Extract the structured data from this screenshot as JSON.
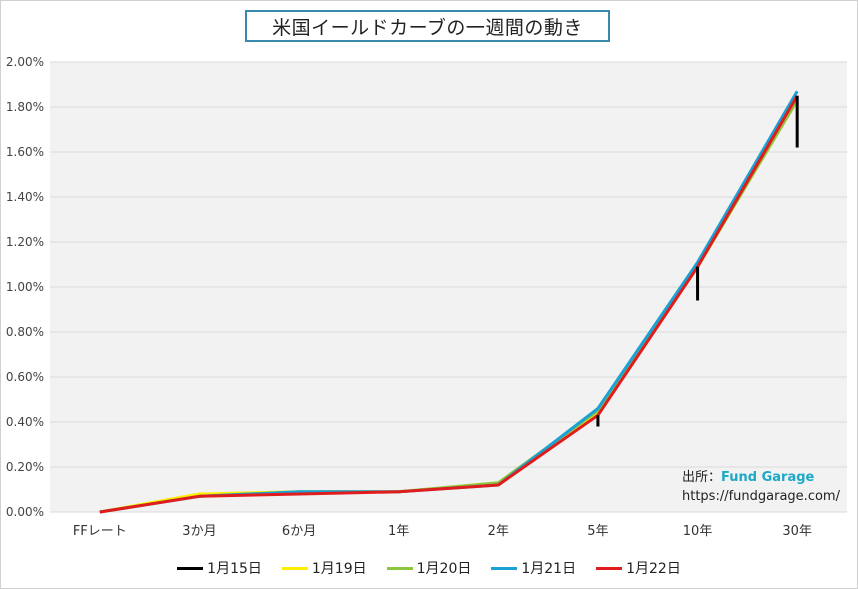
{
  "title": "米国イールドカーブの一週間の動き",
  "source": {
    "label": "出所：",
    "brand": "Fund Garage",
    "url": "https://fundgarage.com/"
  },
  "chart_data": {
    "type": "line",
    "title": "米国イールドカーブの一週間の動き",
    "categories": [
      "FFレート",
      "3か月",
      "6か月",
      "1年",
      "2年",
      "5年",
      "10年",
      "30年"
    ],
    "y_ticks": [
      "0.00%",
      "0.20%",
      "0.40%",
      "0.60%",
      "0.80%",
      "1.00%",
      "1.20%",
      "1.40%",
      "1.60%",
      "1.80%",
      "2.00%"
    ],
    "ylim": [
      0,
      2.0
    ],
    "grid": true,
    "legend_position": "bottom",
    "series": [
      {
        "name": "1月15日",
        "color": "#000000",
        "values": [
          0.0,
          0.07,
          0.08,
          0.09,
          0.12,
          0.38,
          0.94,
          1.62
        ]
      },
      {
        "name": "1月19日",
        "color": "#ffee00",
        "values": [
          0.0,
          0.08,
          0.09,
          0.09,
          0.13,
          0.44,
          1.09,
          1.83
        ]
      },
      {
        "name": "1月20日",
        "color": "#8cc63f",
        "values": [
          0.0,
          0.07,
          0.09,
          0.09,
          0.13,
          0.45,
          1.09,
          1.83
        ]
      },
      {
        "name": "1月21日",
        "color": "#1ba1d4",
        "values": [
          0.0,
          0.07,
          0.09,
          0.09,
          0.12,
          0.46,
          1.11,
          1.87
        ]
      },
      {
        "name": "1月22日",
        "color": "#e01c1c",
        "values": [
          0.0,
          0.07,
          0.08,
          0.09,
          0.12,
          0.43,
          1.09,
          1.85
        ]
      }
    ]
  }
}
